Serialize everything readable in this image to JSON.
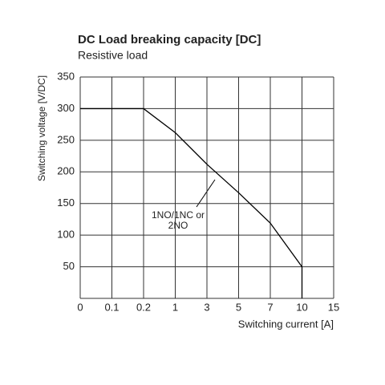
{
  "chart_data": {
    "type": "line",
    "title": "DC Load breaking capacity [DC]",
    "subtitle": "Resistive load",
    "x_label": "Switching current [A]",
    "y_label": "Switching voltage [V/DC]",
    "annotation": [
      "1NO/1NC or",
      "2NO"
    ],
    "x": [
      0,
      0.2,
      1,
      3,
      5,
      7,
      10,
      10
    ],
    "series": [
      {
        "name": "1NO/1NC or 2NO",
        "color": "#000000",
        "values": [
          300,
          300,
          262,
          212,
          167,
          119,
          50,
          0
        ]
      }
    ],
    "xlim": [
      0,
      15
    ],
    "xticks": [
      0,
      0.1,
      0.2,
      1,
      3,
      5,
      7,
      10,
      15
    ],
    "ylim": [
      0,
      350
    ],
    "yticks": [
      50,
      100,
      150,
      200,
      250,
      300,
      350
    ],
    "grid": true
  }
}
